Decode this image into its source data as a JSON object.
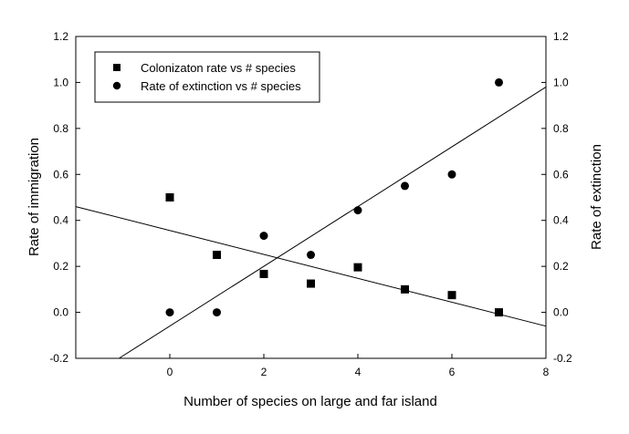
{
  "chart_data": {
    "type": "scatter",
    "title": "",
    "xlabel": "Number of species on large and far island",
    "ylabel_left": "Rate of immigration",
    "ylabel_right": "Rate of extinction",
    "xlim": [
      -2,
      8
    ],
    "ylim": [
      -0.2,
      1.2
    ],
    "x_ticks": [
      0,
      2,
      4,
      6,
      8
    ],
    "y_ticks": [
      -0.2,
      0.0,
      0.2,
      0.4,
      0.6,
      0.8,
      1.0,
      1.2
    ],
    "x_tick_labels": [
      "0",
      "2",
      "4",
      "6",
      "8"
    ],
    "y_tick_labels": [
      "-0.2",
      "0.0",
      "0.2",
      "0.4",
      "0.6",
      "0.8",
      "1.0",
      "1.2"
    ],
    "grid": false,
    "legend_position": "top-left",
    "series": [
      {
        "name": "Colonizaton rate vs # species",
        "marker": "square",
        "color": "#000000",
        "x": [
          0,
          1,
          2,
          3,
          4,
          5,
          6,
          7
        ],
        "y": [
          0.5,
          0.25,
          0.167,
          0.125,
          0.196,
          0.1,
          0.075,
          0.0
        ],
        "fit_line": {
          "x": [
            -2,
            8
          ],
          "y": [
            0.46,
            -0.06
          ]
        }
      },
      {
        "name": "Rate of extinction vs # species",
        "marker": "circle",
        "color": "#000000",
        "x": [
          0,
          1,
          2,
          3,
          4,
          5,
          6,
          7
        ],
        "y": [
          0.0,
          0.0,
          0.333,
          0.25,
          0.444,
          0.55,
          0.6,
          1.0
        ],
        "fit_line": {
          "x": [
            -1.08,
            8
          ],
          "y": [
            -0.2,
            0.98
          ]
        }
      }
    ]
  }
}
